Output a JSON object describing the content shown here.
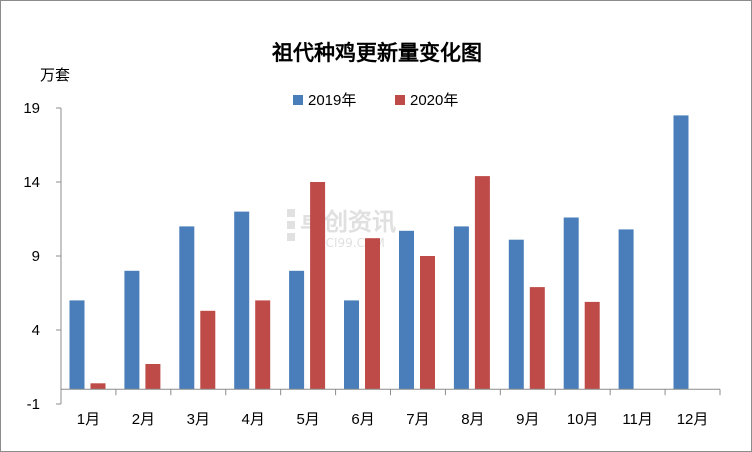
{
  "chart_data": {
    "type": "bar",
    "title": "祖代种鸡更新量变化图",
    "ylabel": "万套",
    "xlabel": "",
    "categories": [
      "1月",
      "2月",
      "3月",
      "4月",
      "5月",
      "6月",
      "7月",
      "8月",
      "9月",
      "10月",
      "11月",
      "12月"
    ],
    "series": [
      {
        "name": "2019年",
        "color": "#4a7ebb",
        "values": [
          6,
          8,
          11,
          12,
          8,
          6,
          10.7,
          11,
          10.1,
          11.6,
          10.8,
          18.5
        ]
      },
      {
        "name": "2020年",
        "color": "#be4b48",
        "values": [
          0.4,
          1.7,
          5.3,
          6,
          14,
          10.2,
          9,
          14.4,
          6.9,
          5.9,
          null,
          null
        ]
      }
    ],
    "ylim": [
      -1,
      19
    ],
    "yticks": [
      "19",
      "14",
      "9",
      "4",
      "-1"
    ],
    "legend": "top-center",
    "grid": false
  },
  "watermark": {
    "text": "卓创资讯",
    "sub": "SCI99.COM"
  }
}
